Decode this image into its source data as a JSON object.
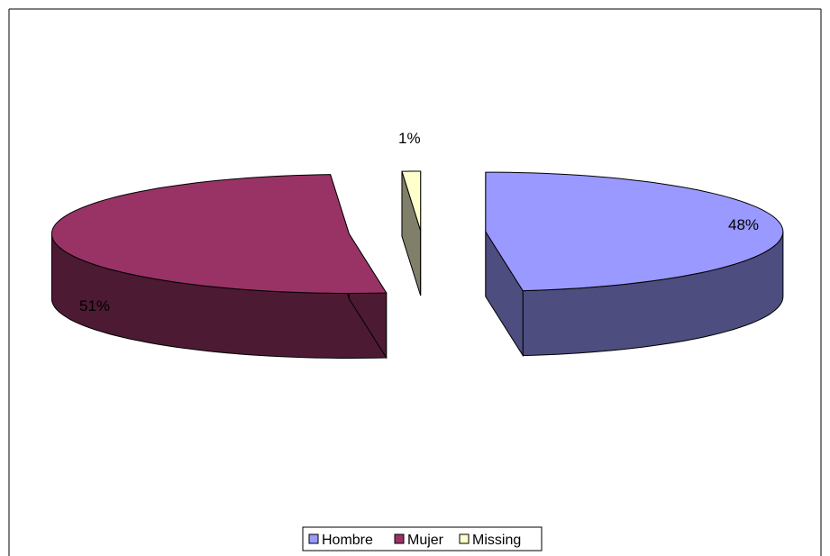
{
  "chart_data": {
    "type": "pie",
    "style": "3d-exploded",
    "title": "",
    "slices": [
      {
        "name": "Hombre",
        "value": 48,
        "label": "48%",
        "color": "#9999FF",
        "side_color": "#4D4D80"
      },
      {
        "name": "Mujer",
        "value": 51,
        "label": "51%",
        "color": "#993366",
        "side_color": "#4D1A33"
      },
      {
        "name": "Missing",
        "value": 1,
        "label": "1%",
        "color": "#FFFFCC",
        "side_color": "#80806A"
      }
    ],
    "legend": {
      "position": "bottom",
      "items": [
        "Hombre",
        "Mujer",
        "Missing"
      ]
    }
  }
}
